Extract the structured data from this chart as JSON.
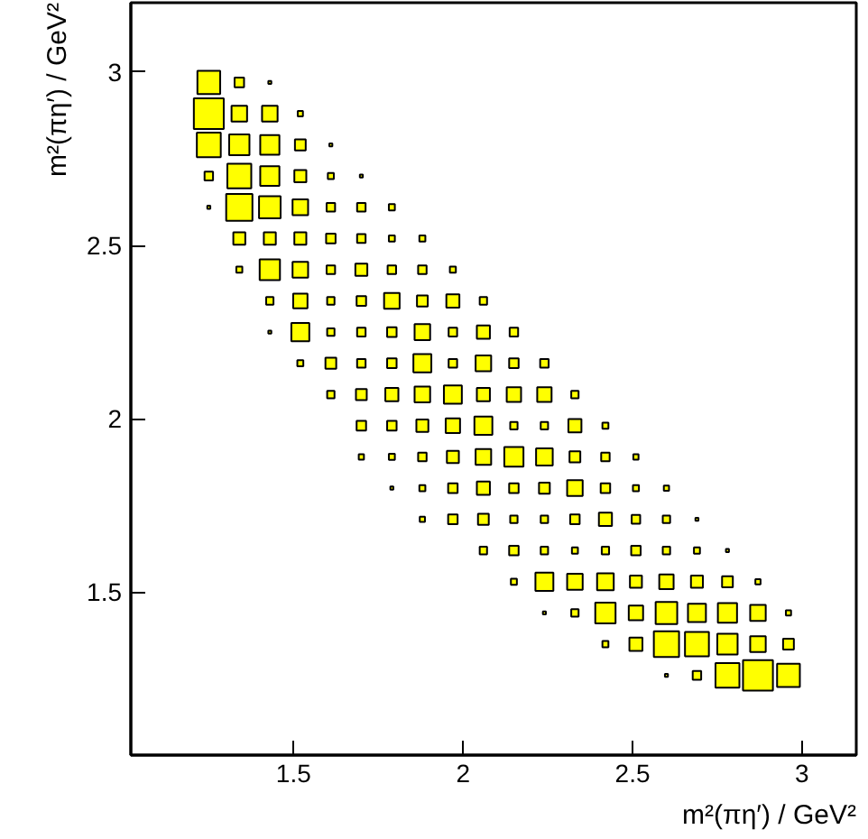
{
  "chart_data": {
    "type": "bubble",
    "xlabel": "m²(πη′) / GeV²",
    "ylabel": "m²(πη′) / GeV²",
    "xlim": [
      1.02,
      3.16
    ],
    "ylim": [
      1.03,
      3.2
    ],
    "xticks": [
      1.5,
      2,
      2.5,
      3
    ],
    "yticks": [
      1.5,
      2,
      2.5,
      3
    ],
    "grid": false,
    "marker": "square",
    "series": [
      {
        "color": "#ffff00",
        "x": [
          1.25,
          1.34,
          1.43
        ],
        "values": [
          2.97,
          2.97,
          2.97
        ],
        "sizes": [
          0.58,
          0.1,
          0.01
        ]
      },
      {
        "color": "#ffff00",
        "x": [
          1.25,
          1.34,
          1.43,
          1.52
        ],
        "values": [
          2.88,
          2.88,
          2.88,
          2.88
        ],
        "sizes": [
          1,
          0.27,
          0.27,
          0.03
        ]
      },
      {
        "color": "#ffff00",
        "x": [
          1.25,
          1.34,
          1.43,
          1.52,
          1.61
        ],
        "values": [
          2.79,
          2.79,
          2.79,
          2.79,
          2.79
        ],
        "sizes": [
          0.64,
          0.46,
          0.41,
          0.13,
          0.01
        ]
      },
      {
        "color": "#ffff00",
        "x": [
          1.25,
          1.34,
          1.43,
          1.52,
          1.61,
          1.7
        ],
        "values": [
          2.7,
          2.7,
          2.7,
          2.7,
          2.7,
          2.7
        ],
        "sizes": [
          0.08,
          0.64,
          0.41,
          0.16,
          0.04,
          0.01
        ]
      },
      {
        "color": "#ffff00",
        "x": [
          1.25,
          1.34,
          1.43,
          1.52,
          1.61,
          1.7,
          1.79
        ],
        "values": [
          2.61,
          2.61,
          2.61,
          2.61,
          2.61,
          2.61,
          2.61
        ],
        "sizes": [
          0.01,
          0.77,
          0.52,
          0.27,
          0.08,
          0.08,
          0.04
        ]
      },
      {
        "color": "#ffff00",
        "x": [
          1.34,
          1.43,
          1.52,
          1.61,
          1.7,
          1.79,
          1.88
        ],
        "values": [
          2.52,
          2.52,
          2.52,
          2.52,
          2.52,
          2.52,
          2.52
        ],
        "sizes": [
          0.16,
          0.16,
          0.16,
          0.1,
          0.08,
          0.04,
          0.04
        ]
      },
      {
        "color": "#ffff00",
        "x": [
          1.34,
          1.43,
          1.52,
          1.61,
          1.7,
          1.79,
          1.88,
          1.97
        ],
        "values": [
          2.43,
          2.43,
          2.43,
          2.43,
          2.43,
          2.43,
          2.43,
          2.43
        ],
        "sizes": [
          0.04,
          0.46,
          0.27,
          0.08,
          0.16,
          0.08,
          0.08,
          0.04
        ]
      },
      {
        "color": "#ffff00",
        "x": [
          1.43,
          1.52,
          1.61,
          1.7,
          1.79,
          1.88,
          1.97,
          2.06
        ],
        "values": [
          2.34,
          2.34,
          2.34,
          2.34,
          2.34,
          2.34,
          2.34,
          2.34
        ],
        "sizes": [
          0.06,
          0.23,
          0.06,
          0.1,
          0.27,
          0.13,
          0.19,
          0.06
        ]
      },
      {
        "color": "#ffff00",
        "x": [
          1.43,
          1.52,
          1.61,
          1.7,
          1.79,
          1.88,
          1.97,
          2.06,
          2.15
        ],
        "values": [
          2.25,
          2.25,
          2.25,
          2.25,
          2.25,
          2.25,
          2.25,
          2.25,
          2.25
        ],
        "sizes": [
          0.01,
          0.36,
          0.06,
          0.08,
          0.1,
          0.27,
          0.08,
          0.19,
          0.08
        ]
      },
      {
        "color": "#ffff00",
        "x": [
          1.52,
          1.61,
          1.7,
          1.79,
          1.88,
          1.97,
          2.06,
          2.15,
          2.24
        ],
        "values": [
          2.16,
          2.16,
          2.16,
          2.16,
          2.16,
          2.16,
          2.16,
          2.16,
          2.16
        ],
        "sizes": [
          0.04,
          0.13,
          0.08,
          0.1,
          0.36,
          0.08,
          0.27,
          0.1,
          0.08
        ]
      },
      {
        "color": "#ffff00",
        "x": [
          1.61,
          1.7,
          1.79,
          1.88,
          1.97,
          2.06,
          2.15,
          2.24,
          2.33
        ],
        "values": [
          2.07,
          2.07,
          2.07,
          2.07,
          2.07,
          2.07,
          2.07,
          2.07,
          2.07
        ],
        "sizes": [
          0.06,
          0.13,
          0.19,
          0.27,
          0.36,
          0.19,
          0.23,
          0.23,
          0.06
        ]
      },
      {
        "color": "#ffff00",
        "x": [
          1.7,
          1.79,
          1.88,
          1.97,
          2.06,
          2.15,
          2.24,
          2.33,
          2.42
        ],
        "values": [
          1.98,
          1.98,
          1.98,
          1.98,
          1.98,
          1.98,
          1.98,
          1.98,
          1.98
        ],
        "sizes": [
          0.1,
          0.1,
          0.16,
          0.23,
          0.36,
          0.06,
          0.06,
          0.19,
          0.04
        ]
      },
      {
        "color": "#ffff00",
        "x": [
          1.7,
          1.79,
          1.88,
          1.97,
          2.06,
          2.15,
          2.24,
          2.33,
          2.42,
          2.51
        ],
        "values": [
          1.89,
          1.89,
          1.89,
          1.89,
          1.89,
          1.89,
          1.89,
          1.89,
          1.89,
          1.89
        ],
        "sizes": [
          0.03,
          0.04,
          0.08,
          0.16,
          0.27,
          0.41,
          0.31,
          0.13,
          0.08,
          0.03
        ]
      },
      {
        "color": "#ffff00",
        "x": [
          1.79,
          1.88,
          1.97,
          2.06,
          2.15,
          2.24,
          2.33,
          2.42,
          2.51,
          2.6
        ],
        "values": [
          1.8,
          1.8,
          1.8,
          1.8,
          1.8,
          1.8,
          1.8,
          1.8,
          1.8,
          1.8
        ],
        "sizes": [
          0.01,
          0.04,
          0.1,
          0.19,
          0.1,
          0.13,
          0.27,
          0.1,
          0.04,
          0.03
        ]
      },
      {
        "color": "#ffff00",
        "x": [
          1.88,
          1.97,
          2.06,
          2.15,
          2.24,
          2.33,
          2.42,
          2.51,
          2.6,
          2.69
        ],
        "values": [
          1.71,
          1.71,
          1.71,
          1.71,
          1.71,
          1.71,
          1.71,
          1.71,
          1.71,
          1.71
        ],
        "sizes": [
          0.03,
          0.1,
          0.13,
          0.06,
          0.06,
          0.1,
          0.19,
          0.08,
          0.06,
          0.01
        ]
      },
      {
        "color": "#ffff00",
        "x": [
          2.06,
          2.15,
          2.24,
          2.33,
          2.42,
          2.51,
          2.6,
          2.69,
          2.78
        ],
        "values": [
          1.62,
          1.62,
          1.62,
          1.62,
          1.62,
          1.62,
          1.62,
          1.62,
          1.62
        ],
        "sizes": [
          0.06,
          0.1,
          0.06,
          0.04,
          0.06,
          0.1,
          0.06,
          0.04,
          0.01
        ]
      },
      {
        "color": "#ffff00",
        "x": [
          2.15,
          2.24,
          2.33,
          2.42,
          2.51,
          2.6,
          2.69,
          2.78,
          2.87
        ],
        "values": [
          1.53,
          1.53,
          1.53,
          1.53,
          1.53,
          1.53,
          1.53,
          1.53,
          1.53
        ],
        "sizes": [
          0.04,
          0.36,
          0.27,
          0.31,
          0.16,
          0.23,
          0.16,
          0.13,
          0.03
        ]
      },
      {
        "color": "#ffff00",
        "x": [
          2.24,
          2.33,
          2.42,
          2.51,
          2.6,
          2.69,
          2.78,
          2.87,
          2.96
        ],
        "values": [
          1.44,
          1.44,
          1.44,
          1.44,
          1.44,
          1.44,
          1.44,
          1.44,
          1.44
        ],
        "sizes": [
          0.01,
          0.06,
          0.46,
          0.23,
          0.52,
          0.36,
          0.41,
          0.27,
          0.03
        ]
      },
      {
        "color": "#ffff00",
        "x": [
          2.42,
          2.51,
          2.6,
          2.69,
          2.78,
          2.87,
          2.96
        ],
        "values": [
          1.35,
          1.35,
          1.35,
          1.35,
          1.35,
          1.35,
          1.35
        ],
        "sizes": [
          0.04,
          0.19,
          0.71,
          0.64,
          0.46,
          0.27,
          0.13
        ]
      },
      {
        "color": "#ffff00",
        "x": [
          2.6,
          2.69,
          2.78,
          2.87,
          2.96
        ],
        "values": [
          1.26,
          1.26,
          1.26,
          1.26,
          1.26
        ],
        "sizes": [
          0.01,
          0.08,
          0.64,
          1,
          0.58
        ]
      }
    ]
  }
}
